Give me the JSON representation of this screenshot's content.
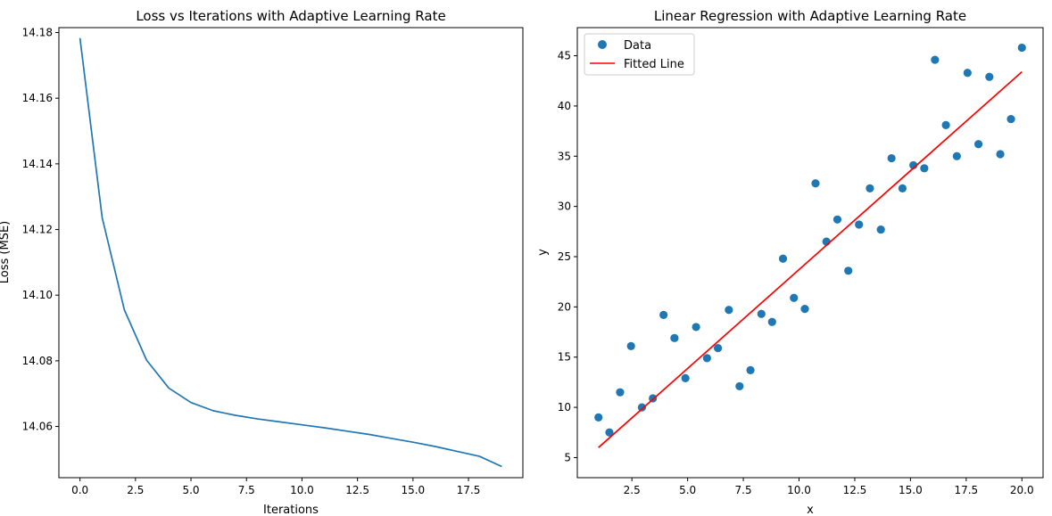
{
  "chart_data": [
    {
      "type": "line",
      "title": "Loss vs Iterations with Adaptive Learning Rate",
      "xlabel": "Iterations",
      "ylabel": "Loss (MSE)",
      "xlim": [
        -0.95,
        19.95
      ],
      "ylim": [
        14.0444,
        14.1815
      ],
      "xticks": [
        0.0,
        2.5,
        5.0,
        7.5,
        10.0,
        12.5,
        15.0,
        17.5
      ],
      "xtick_labels": [
        "0.0",
        "2.5",
        "5.0",
        "7.5",
        "10.0",
        "12.5",
        "15.0",
        "17.5"
      ],
      "yticks": [
        14.06,
        14.08,
        14.1,
        14.12,
        14.14,
        14.16,
        14.18
      ],
      "ytick_labels": [
        "14.06",
        "14.08",
        "14.10",
        "14.12",
        "14.14",
        "14.16",
        "14.18"
      ],
      "grid": false,
      "series": [
        {
          "name": "Loss",
          "color": "#1f77b4",
          "x": [
            0,
            1,
            2,
            3,
            4,
            5,
            6,
            7,
            8,
            9,
            10,
            11,
            12,
            13,
            14,
            15,
            16,
            17,
            18,
            19
          ],
          "values": [
            14.1783,
            14.1236,
            14.0955,
            14.0802,
            14.0717,
            14.0673,
            14.0648,
            14.0634,
            14.0623,
            14.0614,
            14.0605,
            14.0596,
            14.0586,
            14.0576,
            14.0564,
            14.0552,
            14.0539,
            14.0524,
            14.0509,
            14.0478
          ]
        }
      ]
    },
    {
      "type": "scatter",
      "title": "Linear Regression with Adaptive Learning Rate",
      "xlabel": "x",
      "ylabel": "y",
      "xlim": [
        0.05,
        20.95
      ],
      "ylim": [
        3.0,
        47.8
      ],
      "xticks": [
        2.5,
        5.0,
        7.5,
        10.0,
        12.5,
        15.0,
        17.5,
        20.0
      ],
      "xtick_labels": [
        "2.5",
        "5.0",
        "7.5",
        "10.0",
        "12.5",
        "15.0",
        "17.5",
        "20.0"
      ],
      "yticks": [
        5,
        10,
        15,
        20,
        25,
        30,
        35,
        40,
        45
      ],
      "ytick_labels": [
        "5",
        "10",
        "15",
        "20",
        "25",
        "30",
        "35",
        "40",
        "45"
      ],
      "grid": false,
      "legend": {
        "placement": "top-left",
        "entries": [
          "Data",
          "Fitted Line"
        ]
      },
      "series": [
        {
          "name": "Data",
          "kind": "scatter",
          "color": "#1f77b4",
          "x": [
            1.0,
            1.49,
            1.97,
            2.46,
            2.95,
            3.44,
            3.92,
            4.41,
            4.9,
            5.38,
            5.87,
            6.36,
            6.85,
            7.33,
            7.82,
            8.31,
            8.79,
            9.28,
            9.77,
            10.26,
            10.74,
            11.23,
            11.72,
            12.21,
            12.69,
            13.18,
            13.67,
            14.15,
            14.64,
            15.13,
            15.62,
            16.1,
            16.59,
            17.08,
            17.56,
            18.05,
            18.54,
            19.03,
            19.51,
            20.0
          ],
          "values": [
            9.0,
            7.5,
            11.5,
            16.1,
            10.0,
            10.9,
            19.2,
            16.9,
            12.9,
            18.0,
            14.9,
            15.9,
            19.7,
            12.1,
            13.7,
            19.3,
            18.5,
            24.8,
            20.9,
            19.8,
            32.3,
            26.5,
            28.7,
            23.6,
            28.2,
            31.8,
            27.7,
            34.8,
            31.8,
            34.1,
            33.8,
            44.6,
            38.1,
            35.0,
            43.3,
            36.2,
            42.9,
            35.2,
            38.7,
            45.8
          ]
        },
        {
          "name": "Fitted Line",
          "kind": "line",
          "color": "#ff0000",
          "x": [
            1.0,
            20.0
          ],
          "values": [
            6.0,
            43.4
          ]
        }
      ]
    }
  ]
}
